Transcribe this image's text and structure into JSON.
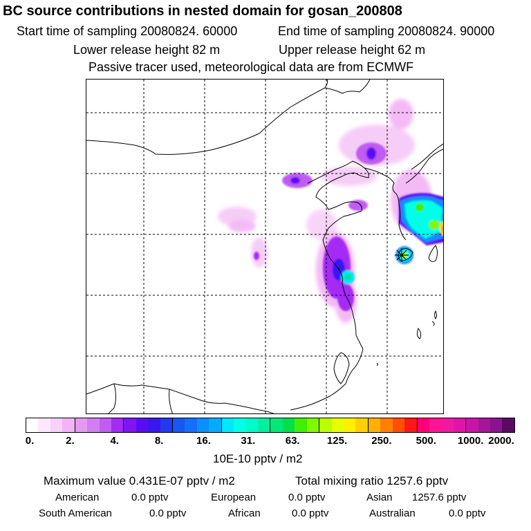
{
  "header": {
    "title": "BC  source contributions in nested domain for gosan_200808",
    "start_time": "Start time of sampling 20080824. 60000",
    "end_time": "End time of sampling 20080824. 90000",
    "lower_release": "Lower release height   82 m",
    "upper_release": "Upper release height   62 m",
    "note": "Passive tracer used, meteorological data are from ECMWF"
  },
  "colorbar": {
    "colors": [
      "#ffffff",
      "#fde8fd",
      "#f9d0f9",
      "#f2b3f4",
      "#e39af0",
      "#d07ff0",
      "#c05cf2",
      "#a52af6",
      "#7f14f5",
      "#5a0cf4",
      "#3818f0",
      "#2238f2",
      "#1558f5",
      "#1470fb",
      "#0a90ff",
      "#00acff",
      "#00e8ff",
      "#00ffe8",
      "#00fbc8",
      "#00f0a0",
      "#00e878",
      "#00e048",
      "#40f000",
      "#80f800",
      "#b8ff00",
      "#e8ff00",
      "#fff000",
      "#ffd000",
      "#ffb000",
      "#ff8000",
      "#ff5000",
      "#ff1818",
      "#ff0078",
      "#ff1496",
      "#f01aa0",
      "#e014a8",
      "#c814a8",
      "#a8149c",
      "#8a1490",
      "#5a0a64"
    ],
    "ticks": [
      "0.",
      "2.",
      "4.",
      "8.",
      "16.",
      "31.",
      "63.",
      "125.",
      "250.",
      "500.",
      "1000.",
      "2000."
    ],
    "units": "10E-10 pptv / m2"
  },
  "summary": {
    "max_label": "Maximum value  0.431E-07 pptv / m2",
    "total_label": "Total mixing ratio     1257.6 pptv"
  },
  "regions": [
    {
      "name": "American",
      "value": "0.0 pptv"
    },
    {
      "name": "European",
      "value": "0.0 pptv"
    },
    {
      "name": "Asian",
      "value": "1257.6 pptv"
    },
    {
      "name": "South American",
      "value": "0.0 pptv"
    },
    {
      "name": "African",
      "value": "0.0 pptv"
    },
    {
      "name": "Australian",
      "value": "0.0 pptv"
    }
  ]
}
